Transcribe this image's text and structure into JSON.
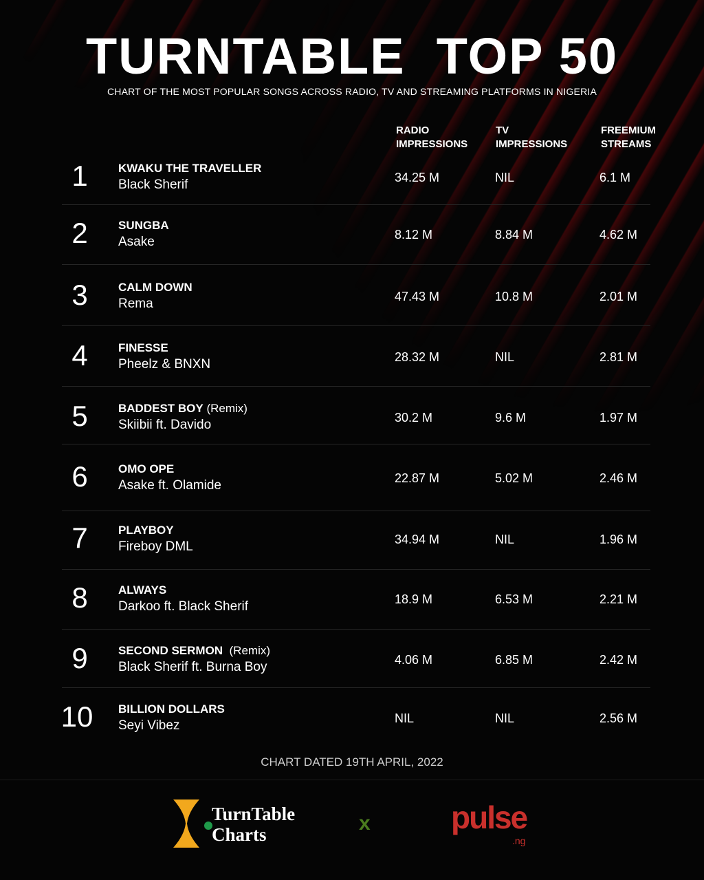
{
  "title": "TURNTABLE  TOP 50",
  "subtitle": "CHART OF THE MOST POPULAR SONGS ACROSS RADIO, TV AND STREAMING PLATFORMS IN NIGERIA",
  "columns": {
    "radio": "RADIO\nIMPRESSIONS",
    "tv": "TV\nIMPRESSIONS",
    "freemium": "FREEMIUM\nSTREAMS"
  },
  "rows": [
    {
      "rank": "1",
      "song": "KWAKU THE TRAVELLER",
      "note": "",
      "artist": "Black Sherif",
      "radio": "34.25 M",
      "tv": "NIL",
      "freemium": "6.1 M"
    },
    {
      "rank": "2",
      "song": "SUNGBA",
      "note": "",
      "artist": "Asake",
      "radio": "8.12 M",
      "tv": "8.84 M",
      "freemium": "4.62 M"
    },
    {
      "rank": "3",
      "song": "CALM DOWN",
      "note": "",
      "artist": "Rema",
      "radio": "47.43 M",
      "tv": "10.8 M",
      "freemium": "2.01 M"
    },
    {
      "rank": "4",
      "song": "FINESSE",
      "note": "",
      "artist": "Pheelz & BNXN",
      "radio": "28.32 M",
      "tv": "NIL",
      "freemium": "2.81 M"
    },
    {
      "rank": "5",
      "song": "BADDEST BOY",
      "note": " (Remix)",
      "artist": "Skiibii ft. Davido",
      "radio": "30.2 M",
      "tv": "9.6 M",
      "freemium": "1.97 M"
    },
    {
      "rank": "6",
      "song": "OMO OPE",
      "note": "",
      "artist": "Asake ft. Olamide",
      "radio": "22.87 M",
      "tv": "5.02 M",
      "freemium": "2.46 M"
    },
    {
      "rank": "7",
      "song": "PLAYBOY",
      "note": "",
      "artist": "Fireboy DML",
      "radio": "34.94 M",
      "tv": "NIL",
      "freemium": "1.96 M"
    },
    {
      "rank": "8",
      "song": "ALWAYS",
      "note": "",
      "artist": "Darkoo ft. Black Sherif",
      "radio": "18.9 M",
      "tv": "6.53 M",
      "freemium": "2.21 M"
    },
    {
      "rank": "9",
      "song": "SECOND SERMON",
      "note": "  (Remix)",
      "artist": "Black Sherif ft. Burna Boy",
      "radio": "4.06 M",
      "tv": "6.85 M",
      "freemium": "2.42 M"
    },
    {
      "rank": "10",
      "song": "BILLION DOLLARS",
      "note": "",
      "artist": "Seyi Vibez",
      "radio": "NIL",
      "tv": "NIL",
      "freemium": "2.56 M"
    }
  ],
  "chart_dated": "CHART DATED 19TH APRIL, 2022",
  "footer": {
    "turntable_logo": "TurnTable\nCharts",
    "separator": "x",
    "pulse_logo": "pulse",
    "pulse_suffix": ".ng"
  },
  "colors": {
    "background": "#050505",
    "stripe": "#78080c",
    "turntable_gold": "#f2a81d",
    "turntable_green": "#1f9a4a",
    "pulse_red": "#c9302c",
    "x_green": "#4a7a1e"
  }
}
